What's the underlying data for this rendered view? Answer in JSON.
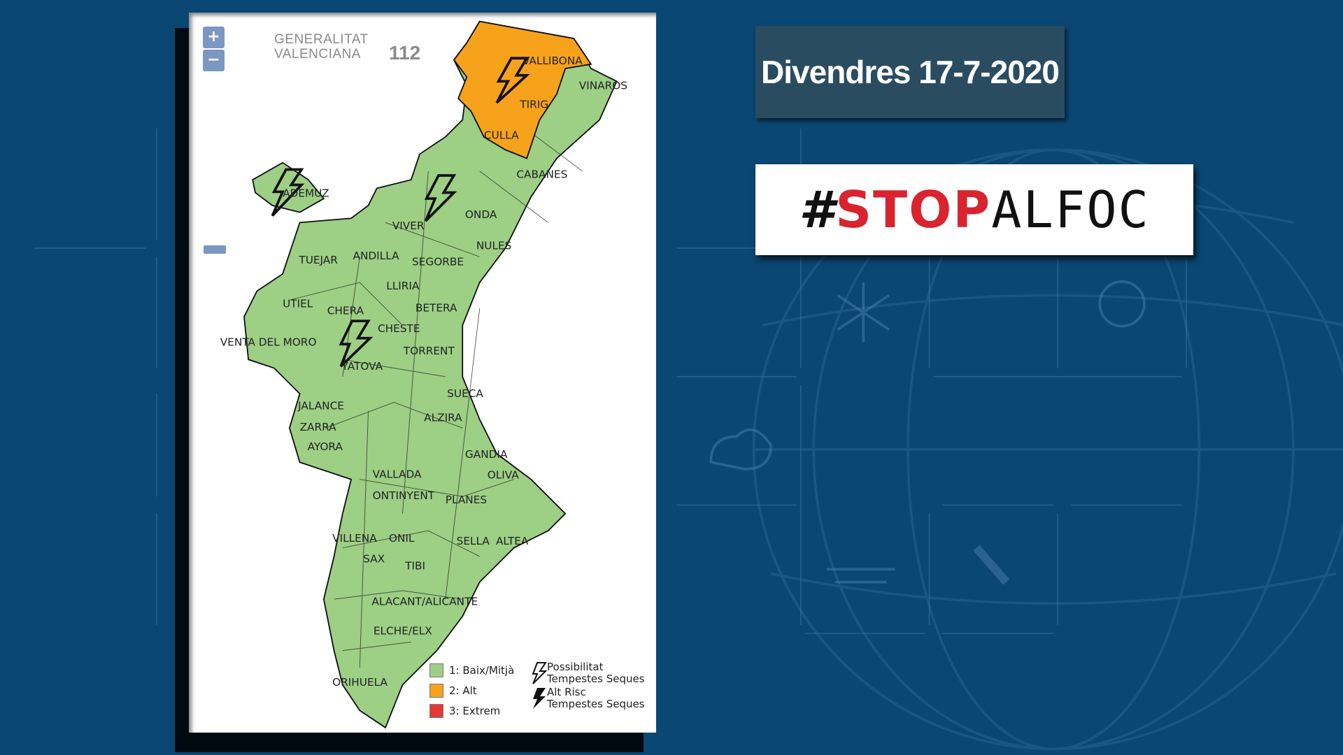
{
  "header": {
    "date_title": "Divendres 17-7-2020",
    "hashtag": {
      "hash": "#",
      "red": "STOP",
      "black": "ALFOC"
    }
  },
  "map": {
    "zoom_in": "+",
    "zoom_out": "−",
    "logos": {
      "generalitat_line1": "GENERALITAT",
      "generalitat_line2": "VALENCIANA",
      "emergency": "112"
    },
    "colors": {
      "low": "#9dcf85",
      "high": "#f7a21b",
      "extreme": "#e53935",
      "background": "#0b4773"
    },
    "places": [
      "VALLIBONA",
      "VINAROS",
      "TIRIG",
      "CULLA",
      "CABANES",
      "ADEMUZ",
      "ONDA",
      "VIVER",
      "ANDILLA",
      "SEGORBE",
      "NULES",
      "TUEJAR",
      "LLIRIA",
      "BETERA",
      "UTIEL",
      "CHERA",
      "CHESTE",
      "VENTA DEL MORO",
      "TORRENT",
      "YATOVA",
      "SUECA",
      "JALANCE",
      "ALZIRA",
      "ZARRA",
      "AYORA",
      "GANDIA",
      "VALLADA",
      "OLIVA",
      "ONTINYENT",
      "PLANES",
      "VILLENA",
      "ONIL",
      "SELLA",
      "ALTEA",
      "SAX",
      "TIBI",
      "ALACANT/ALICANTE",
      "ELCHE/ELX",
      "ORIHUELA"
    ],
    "legend": {
      "low": "1: Baix/Mitjà",
      "high": "2: Alt",
      "extreme": "3: Extrem",
      "possible_line1": "Possibilitat",
      "possible_line2": "Tempestes Seques",
      "alt_line1": "Alt Risc",
      "alt_line2": "Tempestes Seques"
    }
  }
}
